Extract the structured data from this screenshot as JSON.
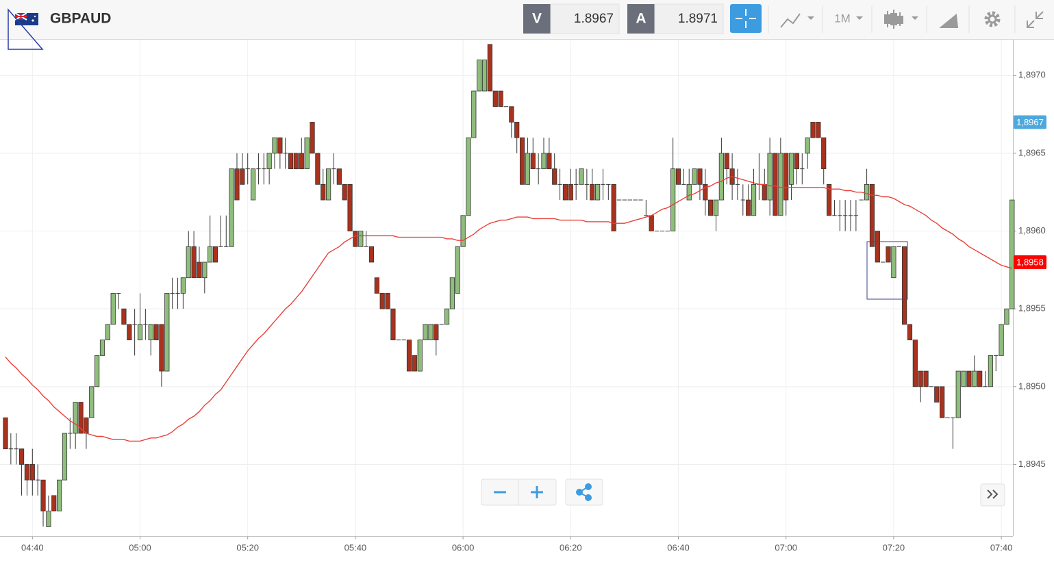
{
  "header": {
    "symbol": "GBPAUD",
    "bid_label": "V",
    "bid": "1.8967",
    "ask_label": "A",
    "ask": "1.8971",
    "timeframe": "1M"
  },
  "chart_data": {
    "type": "candlestick",
    "categories": [
      null,
      null,
      null,
      null,
      null,
      "04:40",
      null,
      null,
      null,
      null,
      null,
      null,
      null,
      null,
      null,
      null,
      null,
      null,
      null,
      null,
      null,
      null,
      null,
      null,
      null,
      "05:00",
      null,
      null,
      null,
      null,
      null,
      null,
      null,
      null,
      null,
      null,
      null,
      null,
      null,
      null,
      null,
      null,
      null,
      null,
      null,
      "05:20",
      null,
      null,
      null,
      null,
      null,
      null,
      null,
      null,
      null,
      null,
      null,
      null,
      null,
      null,
      null,
      null,
      null,
      null,
      null,
      "05:40",
      null,
      null,
      null,
      null,
      null,
      null,
      null,
      null,
      null,
      null,
      null,
      null,
      null,
      null,
      null,
      null,
      null,
      null,
      null,
      "06:00",
      null,
      null,
      null,
      null,
      null,
      null,
      null,
      null,
      null,
      null,
      null,
      null,
      null,
      null,
      null,
      null,
      null,
      null,
      null,
      "06:20",
      null,
      null,
      null,
      null,
      null,
      null,
      null,
      null,
      null,
      null,
      null,
      null,
      null,
      null,
      null,
      null,
      null,
      null,
      null,
      "06:40",
      null,
      null,
      null,
      null,
      null,
      null,
      null,
      null,
      null,
      null,
      null,
      null,
      null,
      null,
      null,
      null,
      null,
      null,
      null,
      "07:00",
      null,
      null,
      null,
      null,
      null,
      null,
      null,
      null,
      null,
      null,
      null,
      null,
      null,
      null,
      null,
      null,
      null,
      null,
      null,
      "07:20",
      null,
      null,
      null,
      null,
      null,
      null,
      null,
      null,
      null,
      null,
      null,
      null,
      null,
      null,
      null,
      null,
      null,
      null,
      null,
      "07:40",
      null,
      null
    ],
    "open": [
      1.8948,
      1.8946,
      1.8946,
      1.8946,
      1.8945,
      1.8945,
      1.8944,
      1.8944,
      1.8941,
      1.8943,
      1.8942,
      1.8944,
      1.8947,
      1.8947,
      1.8949,
      1.8948,
      1.8948,
      1.895,
      1.8952,
      1.8953,
      1.8954,
      1.8956,
      1.8955,
      1.8954,
      1.8954,
      1.8953,
      1.8954,
      1.8953,
      1.8954,
      1.8954,
      1.8951,
      1.8956,
      1.8956,
      1.8956,
      1.8957,
      1.8959,
      1.8958,
      1.8957,
      1.8958,
      1.8959,
      1.8959,
      1.8959,
      1.8959,
      1.8964,
      1.8964,
      1.8964,
      1.8962,
      1.8964,
      1.8964,
      1.8964,
      1.8965,
      1.8966,
      1.8965,
      1.8965,
      1.8965,
      1.8965,
      1.8964,
      1.8967,
      1.8965,
      1.8963,
      1.8962,
      1.8964,
      1.8964,
      1.8963,
      1.8963,
      1.896,
      1.8959,
      1.8959,
      1.8959,
      1.8957,
      1.8956,
      1.8956,
      1.8955,
      1.8953,
      1.8953,
      1.8953,
      1.8952,
      1.8951,
      1.8953,
      1.8953,
      1.8954,
      1.8954,
      1.8954,
      1.8955,
      1.8956,
      1.8959,
      1.8961,
      1.8966,
      1.8969,
      1.8969,
      1.8972,
      1.8969,
      1.8969,
      1.8968,
      1.8968,
      1.8967,
      1.8966,
      1.8963,
      1.8965,
      1.8964,
      1.8964,
      1.8965,
      1.8964,
      1.8963,
      1.8963,
      1.8963,
      1.8963,
      1.8963,
      1.8963,
      1.8963,
      1.8962,
      1.8963,
      1.8963,
      1.8963,
      1.8962,
      1.8962,
      1.8962,
      1.8962,
      1.8962,
      1.8961,
      1.8961,
      1.896,
      1.896,
      1.896,
      1.896,
      1.8964,
      1.8963,
      1.8962,
      1.8963,
      1.8964,
      1.8963,
      1.8962,
      1.8961,
      1.8962,
      1.8965,
      1.8964,
      1.8963,
      1.8962,
      1.8962,
      1.8961,
      1.8963,
      1.8963,
      1.8962,
      1.8965,
      1.8961,
      1.8965,
      1.8963,
      1.8965,
      1.8964,
      1.8965,
      1.8967,
      1.8967,
      1.8966,
      1.8963,
      1.8961,
      1.8961,
      1.8961,
      1.8961,
      1.8961,
      1.8962,
      1.8962,
      1.8963,
      1.896,
      1.8958,
      1.8959,
      1.8957,
      1.8959,
      1.8959,
      1.8954,
      1.8953,
      1.8951,
      1.8951,
      1.895,
      1.895,
      1.895,
      1.8948,
      1.8948,
      1.8948,
      1.895,
      1.8951,
      1.895,
      1.8951,
      1.895,
      1.895,
      1.8952,
      1.8952,
      1.8954,
      1.8955
    ],
    "high": [
      1.8948,
      1.8947,
      1.8947,
      1.8946,
      1.8945,
      1.8946,
      1.8945,
      1.8944,
      1.8943,
      1.8943,
      1.8944,
      1.8947,
      1.8948,
      1.8949,
      1.8949,
      1.8948,
      1.895,
      1.8952,
      1.8953,
      1.8954,
      1.8956,
      1.8956,
      1.8955,
      1.8954,
      1.8955,
      1.8956,
      1.8955,
      1.8954,
      1.8954,
      1.8954,
      1.8956,
      1.8957,
      1.8957,
      1.8957,
      1.896,
      1.896,
      1.8959,
      1.8958,
      1.8961,
      1.8959,
      1.8961,
      1.8961,
      1.8964,
      1.8965,
      1.8965,
      1.8965,
      1.8964,
      1.8965,
      1.8965,
      1.8965,
      1.8966,
      1.8966,
      1.8966,
      1.8965,
      1.8965,
      1.8966,
      1.8966,
      1.8967,
      1.8965,
      1.8964,
      1.8964,
      1.8965,
      1.8964,
      1.8963,
      1.8963,
      1.896,
      1.896,
      1.896,
      1.8959,
      1.8957,
      1.8956,
      1.8956,
      1.8955,
      1.8953,
      1.8953,
      1.8953,
      1.8952,
      1.8953,
      1.8954,
      1.8954,
      1.8954,
      1.8954,
      1.8955,
      1.8957,
      1.8959,
      1.8961,
      1.8966,
      1.8969,
      1.8971,
      1.8971,
      1.8972,
      1.8969,
      1.8969,
      1.8968,
      1.8968,
      1.8967,
      1.8966,
      1.8966,
      1.8966,
      1.8965,
      1.8966,
      1.8966,
      1.8965,
      1.8964,
      1.8963,
      1.8964,
      1.8964,
      1.8964,
      1.8964,
      1.8964,
      1.8963,
      1.8964,
      1.8963,
      1.8963,
      1.8962,
      1.8962,
      1.8962,
      1.8962,
      1.8962,
      1.8962,
      1.8961,
      1.896,
      1.896,
      1.896,
      1.8966,
      1.8964,
      1.8964,
      1.8964,
      1.8964,
      1.8964,
      1.8964,
      1.8962,
      1.8962,
      1.8966,
      1.8965,
      1.8965,
      1.8964,
      1.8963,
      1.8963,
      1.8964,
      1.8965,
      1.8964,
      1.8966,
      1.8965,
      1.8966,
      1.8965,
      1.8965,
      1.8965,
      1.8965,
      1.8966,
      1.8967,
      1.8967,
      1.8966,
      1.8963,
      1.8962,
      1.8962,
      1.8962,
      1.8962,
      1.8962,
      1.8962,
      1.8964,
      1.8963,
      1.896,
      1.8958,
      1.8959,
      1.8959,
      1.8959,
      1.8959,
      1.8954,
      1.8953,
      1.8951,
      1.8951,
      1.895,
      1.895,
      1.895,
      1.8948,
      1.8948,
      1.8951,
      1.8951,
      1.8951,
      1.8952,
      1.8951,
      1.8951,
      1.8952,
      1.8952,
      1.8954,
      1.8955,
      1.8962
    ],
    "low": [
      1.8946,
      1.8945,
      1.8945,
      1.8943,
      1.8943,
      1.8943,
      1.8943,
      1.8941,
      1.8941,
      1.8942,
      1.8942,
      1.8944,
      1.8946,
      1.8946,
      1.8947,
      1.8946,
      1.8948,
      1.895,
      1.8952,
      1.8953,
      1.8954,
      1.8955,
      1.8954,
      1.8953,
      1.8952,
      1.8953,
      1.8953,
      1.8952,
      1.8953,
      1.895,
      1.8951,
      1.8955,
      1.8955,
      1.8955,
      1.8957,
      1.8957,
      1.8957,
      1.8956,
      1.8958,
      1.8958,
      1.8959,
      1.8959,
      1.8959,
      1.8962,
      1.8963,
      1.8963,
      1.8962,
      1.8963,
      1.8963,
      1.8963,
      1.8964,
      1.8964,
      1.8964,
      1.8964,
      1.8964,
      1.8964,
      1.8964,
      1.8965,
      1.8963,
      1.8962,
      1.8962,
      1.8963,
      1.8963,
      1.8962,
      1.896,
      1.8959,
      1.8959,
      1.8959,
      1.8958,
      1.8956,
      1.8955,
      1.8955,
      1.8953,
      1.8953,
      1.8953,
      1.8951,
      1.8951,
      1.8951,
      1.8953,
      1.8953,
      1.8952,
      1.8954,
      1.8954,
      1.8955,
      1.8956,
      1.8959,
      1.8961,
      1.8966,
      1.8969,
      1.8969,
      1.8969,
      1.8968,
      1.8968,
      1.8968,
      1.8966,
      1.8965,
      1.8963,
      1.8963,
      1.8964,
      1.8963,
      1.8964,
      1.8964,
      1.8963,
      1.8962,
      1.8962,
      1.8962,
      1.8962,
      1.8963,
      1.8962,
      1.8962,
      1.8962,
      1.8962,
      1.8962,
      1.896,
      1.8962,
      1.8962,
      1.8962,
      1.8962,
      1.8962,
      1.8961,
      1.896,
      1.896,
      1.896,
      1.896,
      1.896,
      1.8963,
      1.8963,
      1.8962,
      1.8963,
      1.8962,
      1.8961,
      1.8961,
      1.896,
      1.8962,
      1.8963,
      1.8962,
      1.8962,
      1.8961,
      1.8961,
      1.8961,
      1.8962,
      1.8962,
      1.8961,
      1.8961,
      1.8961,
      1.8961,
      1.8962,
      1.8963,
      1.8963,
      1.8964,
      1.8966,
      1.8966,
      1.8963,
      1.8961,
      1.8961,
      1.896,
      1.896,
      1.896,
      1.896,
      1.8962,
      1.8962,
      1.8959,
      1.8958,
      1.8958,
      1.8958,
      1.8957,
      1.8959,
      1.8954,
      1.8953,
      1.895,
      1.8949,
      1.895,
      1.895,
      1.8949,
      1.8948,
      1.8948,
      1.8946,
      1.8948,
      1.895,
      1.895,
      1.895,
      1.895,
      1.895,
      1.895,
      1.8951,
      1.8952,
      1.8954,
      1.8955
    ],
    "close": [
      1.8946,
      1.8946,
      1.8946,
      1.8945,
      1.8944,
      1.8944,
      1.8944,
      1.8942,
      1.8942,
      1.8942,
      1.8944,
      1.8947,
      1.8947,
      1.8949,
      1.8947,
      1.8947,
      1.895,
      1.8952,
      1.8953,
      1.8954,
      1.8956,
      1.8956,
      1.8954,
      1.8953,
      1.8954,
      1.8954,
      1.8954,
      1.8954,
      1.8953,
      1.8951,
      1.8956,
      1.8956,
      1.8956,
      1.8957,
      1.8959,
      1.8957,
      1.8957,
      1.8958,
      1.8959,
      1.8958,
      1.8959,
      1.8959,
      1.8964,
      1.8962,
      1.8963,
      1.8964,
      1.8964,
      1.8964,
      1.8964,
      1.8965,
      1.8966,
      1.8965,
      1.8965,
      1.8964,
      1.8964,
      1.8964,
      1.8966,
      1.8965,
      1.8963,
      1.8962,
      1.8964,
      1.8964,
      1.8963,
      1.8962,
      1.896,
      1.8959,
      1.896,
      1.8959,
      1.8958,
      1.8956,
      1.8955,
      1.8955,
      1.8953,
      1.8953,
      1.8953,
      1.8951,
      1.8951,
      1.8953,
      1.8954,
      1.8954,
      1.8953,
      1.8954,
      1.8955,
      1.8957,
      1.8959,
      1.8961,
      1.8966,
      1.8969,
      1.8971,
      1.8971,
      1.8969,
      1.8968,
      1.8968,
      1.8968,
      1.8967,
      1.8966,
      1.8963,
      1.8965,
      1.8964,
      1.8964,
      1.8965,
      1.8964,
      1.8963,
      1.8963,
      1.8962,
      1.8962,
      1.8963,
      1.8964,
      1.8963,
      1.8962,
      1.8963,
      1.8963,
      1.8963,
      1.896,
      1.8962,
      1.8962,
      1.8962,
      1.8962,
      1.8962,
      1.8961,
      1.896,
      1.896,
      1.896,
      1.896,
      1.8964,
      1.8963,
      1.8963,
      1.8963,
      1.8964,
      1.8963,
      1.8962,
      1.8961,
      1.8962,
      1.8965,
      1.8964,
      1.8963,
      1.8963,
      1.8962,
      1.8961,
      1.8963,
      1.8963,
      1.8962,
      1.8965,
      1.8961,
      1.8965,
      1.8962,
      1.8965,
      1.8964,
      1.8964,
      1.8966,
      1.8966,
      1.8966,
      1.8964,
      1.8961,
      1.8961,
      1.8961,
      1.8961,
      1.8961,
      1.8961,
      1.8962,
      1.8963,
      1.8959,
      1.8958,
      1.8958,
      1.8958,
      1.8959,
      1.8959,
      1.8954,
      1.8953,
      1.895,
      1.895,
      1.895,
      1.895,
      1.8949,
      1.8948,
      1.8948,
      1.8948,
      1.8951,
      1.8951,
      1.895,
      1.8951,
      1.895,
      1.895,
      1.8952,
      1.8952,
      1.8954,
      1.8955,
      1.8962
    ],
    "up_color": "#8fbd7c",
    "down_color": "#a8321e",
    "outline_color": "#333333",
    "ma": {
      "color": "#e8403a",
      "values": [
        1.89519,
        1.89515,
        1.89512,
        1.89508,
        1.89505,
        1.89501,
        1.89498,
        1.89494,
        1.89491,
        1.89487,
        1.89484,
        1.89481,
        1.89478,
        1.89476,
        1.89473,
        1.8947,
        1.89469,
        1.89468,
        1.89468,
        1.89467,
        1.89466,
        1.89466,
        1.89466,
        1.89465,
        1.89465,
        1.89465,
        1.89466,
        1.89467,
        1.89467,
        1.89468,
        1.89469,
        1.89471,
        1.89474,
        1.89476,
        1.89479,
        1.89481,
        1.89484,
        1.89488,
        1.89491,
        1.89495,
        1.89498,
        1.89503,
        1.89508,
        1.89513,
        1.89518,
        1.89523,
        1.89527,
        1.89531,
        1.89534,
        1.89538,
        1.89542,
        1.89546,
        1.8955,
        1.89553,
        1.89557,
        1.89561,
        1.89566,
        1.89571,
        1.89576,
        1.89581,
        1.89586,
        1.89588,
        1.8959,
        1.89593,
        1.89595,
        1.89597,
        1.89597,
        1.89597,
        1.89597,
        1.89597,
        1.89597,
        1.89597,
        1.89597,
        1.89596,
        1.89596,
        1.89596,
        1.89596,
        1.89596,
        1.89596,
        1.89596,
        1.89596,
        1.89596,
        1.89595,
        1.89595,
        1.89594,
        1.89594,
        1.89596,
        1.89598,
        1.89601,
        1.89603,
        1.89605,
        1.89606,
        1.89607,
        1.89607,
        1.89608,
        1.89609,
        1.89609,
        1.89609,
        1.89608,
        1.89608,
        1.89608,
        1.89608,
        1.89608,
        1.89607,
        1.89607,
        1.89607,
        1.89607,
        1.89607,
        1.89606,
        1.89606,
        1.89606,
        1.89606,
        1.89606,
        1.89605,
        1.89605,
        1.89605,
        1.89606,
        1.89607,
        1.89608,
        1.89609,
        1.8961,
        1.89612,
        1.89614,
        1.89615,
        1.89617,
        1.89619,
        1.89621,
        1.89623,
        1.89624,
        1.89626,
        1.89628,
        1.89629,
        1.89631,
        1.89632,
        1.89634,
        1.89635,
        1.89634,
        1.89633,
        1.89632,
        1.89631,
        1.8963,
        1.8963,
        1.89629,
        1.89629,
        1.89628,
        1.89628,
        1.89628,
        1.89628,
        1.89628,
        1.89628,
        1.89628,
        1.89628,
        1.89628,
        1.89627,
        1.89627,
        1.89627,
        1.89626,
        1.89626,
        1.89625,
        1.89625,
        1.89624,
        1.89623,
        1.89623,
        1.89622,
        1.89622,
        1.89621,
        1.89619,
        1.89617,
        1.89616,
        1.89614,
        1.89612,
        1.8961,
        1.89607,
        1.89605,
        1.89602,
        1.896,
        1.89598,
        1.89595,
        1.89593,
        1.8959,
        1.89588,
        1.89586,
        1.89584,
        1.89582,
        1.8958,
        1.89578,
        1.89577,
        1.89576
      ]
    },
    "ylim": [
      1.89404,
      1.89723
    ],
    "yticks": [
      {
        "value": 1.8945,
        "label": "1,8945"
      },
      {
        "value": 1.895,
        "label": "1,8950"
      },
      {
        "value": 1.8955,
        "label": "1,8955"
      },
      {
        "value": 1.896,
        "label": "1,8960"
      },
      {
        "value": 1.8965,
        "label": "1,8965"
      },
      {
        "value": 1.897,
        "label": "1,8970"
      }
    ],
    "price_markers": [
      {
        "value": 1.8967,
        "label": "1,8967",
        "color": "#4fa8dc"
      },
      {
        "value": 1.8958,
        "label": "1,8958",
        "color": "#ff0000"
      }
    ],
    "grid": true
  }
}
